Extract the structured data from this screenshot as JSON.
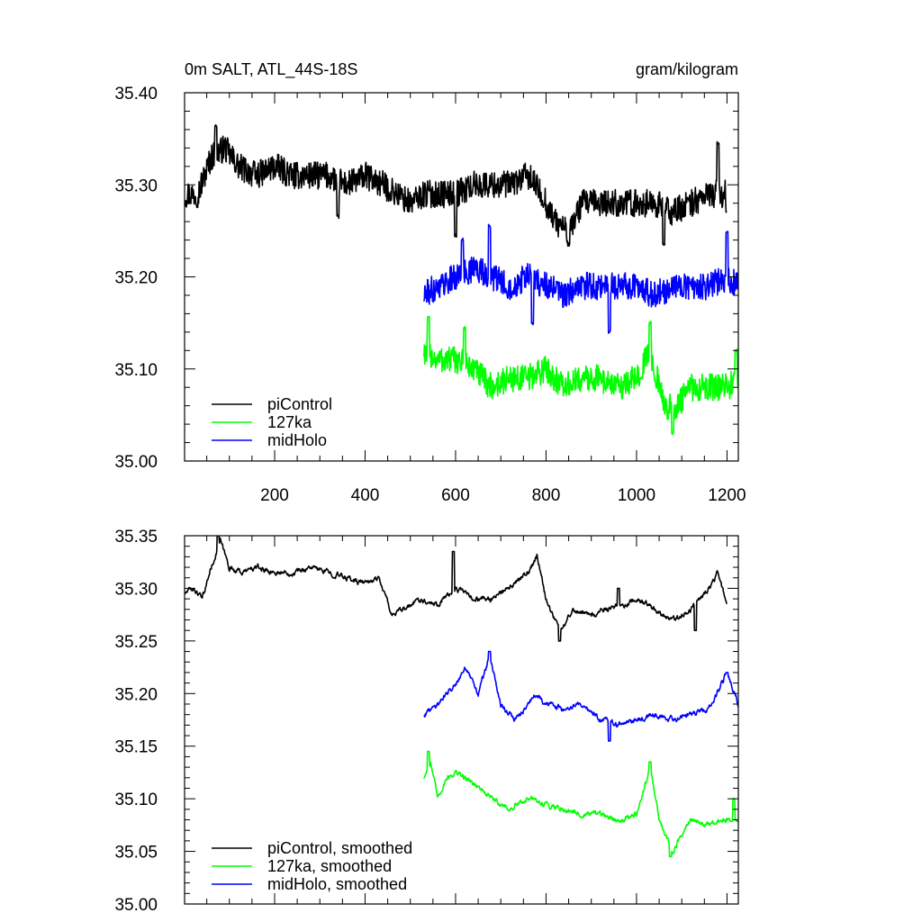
{
  "chart_data": [
    {
      "id": "raw",
      "type": "line",
      "title_left": "0m SALT, ATL_44S-18S",
      "title_right": "gram/kilogram",
      "xlim": [
        1,
        1225
      ],
      "ylim": [
        35.0,
        35.4
      ],
      "xticks": [
        200,
        400,
        600,
        800,
        1000,
        1200
      ],
      "xtick_labels": [
        "200",
        "400",
        "600",
        "800",
        "1000",
        "1200"
      ],
      "show_xtick_labels": true,
      "yticks": [
        35.0,
        35.1,
        35.2,
        35.3,
        35.4
      ],
      "ytick_labels": [
        "35.00",
        "35.10",
        "35.20",
        "35.30",
        "35.40"
      ],
      "legend_position": "bottom-left",
      "series": [
        {
          "name": "piControl",
          "color": "#000000",
          "x_range": [
            1,
            1200
          ],
          "anchors": [
            [
              1,
              35.29
            ],
            [
              30,
              35.29
            ],
            [
              60,
              35.33
            ],
            [
              90,
              35.34
            ],
            [
              120,
              35.32
            ],
            [
              160,
              35.31
            ],
            [
              200,
              35.32
            ],
            [
              240,
              35.31
            ],
            [
              280,
              35.31
            ],
            [
              320,
              35.31
            ],
            [
              360,
              35.3
            ],
            [
              400,
              35.31
            ],
            [
              440,
              35.3
            ],
            [
              470,
              35.29
            ],
            [
              500,
              35.28
            ],
            [
              530,
              35.29
            ],
            [
              560,
              35.29
            ],
            [
              600,
              35.29
            ],
            [
              640,
              35.3
            ],
            [
              680,
              35.3
            ],
            [
              720,
              35.3
            ],
            [
              760,
              35.31
            ],
            [
              790,
              35.29
            ],
            [
              820,
              35.26
            ],
            [
              850,
              35.25
            ],
            [
              880,
              35.28
            ],
            [
              920,
              35.28
            ],
            [
              960,
              35.28
            ],
            [
              1000,
              35.28
            ],
            [
              1040,
              35.28
            ],
            [
              1080,
              35.27
            ],
            [
              1120,
              35.28
            ],
            [
              1160,
              35.29
            ],
            [
              1200,
              35.29
            ]
          ],
          "noise": 0.015,
          "spikes": [
            [
              70,
              35.365
            ],
            [
              340,
              35.265
            ],
            [
              600,
              35.245
            ],
            [
              850,
              35.235
            ],
            [
              1060,
              35.235
            ],
            [
              1180,
              35.345
            ],
            [
              1200,
              35.27
            ]
          ]
        },
        {
          "name": "127ka",
          "color": "#00ff00",
          "x_range": [
            530,
            1225
          ],
          "anchors": [
            [
              530,
              35.12
            ],
            [
              560,
              35.11
            ],
            [
              600,
              35.11
            ],
            [
              640,
              35.1
            ],
            [
              680,
              35.08
            ],
            [
              720,
              35.09
            ],
            [
              760,
              35.09
            ],
            [
              800,
              35.1
            ],
            [
              840,
              35.08
            ],
            [
              880,
              35.09
            ],
            [
              920,
              35.09
            ],
            [
              960,
              35.08
            ],
            [
              1000,
              35.09
            ],
            [
              1030,
              35.12
            ],
            [
              1060,
              35.06
            ],
            [
              1090,
              35.06
            ],
            [
              1120,
              35.08
            ],
            [
              1160,
              35.08
            ],
            [
              1200,
              35.08
            ],
            [
              1225,
              35.09
            ]
          ],
          "noise": 0.015,
          "spikes": [
            [
              540,
              35.155
            ],
            [
              620,
              35.145
            ],
            [
              1030,
              35.15
            ],
            [
              1080,
              35.03
            ],
            [
              1220,
              35.12
            ]
          ]
        },
        {
          "name": "midHolo",
          "color": "#0000ff",
          "x_range": [
            530,
            1225
          ],
          "anchors": [
            [
              530,
              35.18
            ],
            [
              560,
              35.19
            ],
            [
              600,
              35.2
            ],
            [
              640,
              35.21
            ],
            [
              680,
              35.2
            ],
            [
              720,
              35.19
            ],
            [
              760,
              35.2
            ],
            [
              800,
              35.19
            ],
            [
              840,
              35.18
            ],
            [
              880,
              35.19
            ],
            [
              920,
              35.19
            ],
            [
              960,
              35.19
            ],
            [
              1000,
              35.19
            ],
            [
              1040,
              35.18
            ],
            [
              1080,
              35.19
            ],
            [
              1120,
              35.19
            ],
            [
              1160,
              35.19
            ],
            [
              1200,
              35.2
            ],
            [
              1225,
              35.19
            ]
          ],
          "noise": 0.015,
          "spikes": [
            [
              615,
              35.24
            ],
            [
              675,
              35.255
            ],
            [
              770,
              35.15
            ],
            [
              940,
              35.14
            ],
            [
              1200,
              35.25
            ]
          ]
        }
      ]
    },
    {
      "id": "smoothed",
      "type": "line",
      "xlim": [
        1,
        1225
      ],
      "ylim": [
        35.0,
        35.35
      ],
      "xticks": [
        200,
        400,
        600,
        800,
        1000,
        1200
      ],
      "xtick_labels": [],
      "show_xtick_labels": false,
      "yticks": [
        35.0,
        35.05,
        35.1,
        35.15,
        35.2,
        35.25,
        35.3,
        35.35
      ],
      "ytick_labels": [
        "35.00",
        "35.05",
        "35.10",
        "35.15",
        "35.20",
        "35.25",
        "35.30",
        "35.35"
      ],
      "legend_position": "bottom-left",
      "series": [
        {
          "name": "piControl, smoothed",
          "color": "#000000",
          "x_range": [
            1,
            1200
          ],
          "anchors": [
            [
              1,
              35.295
            ],
            [
              20,
              35.3
            ],
            [
              40,
              35.29
            ],
            [
              60,
              35.32
            ],
            [
              80,
              35.345
            ],
            [
              100,
              35.32
            ],
            [
              130,
              35.315
            ],
            [
              160,
              35.32
            ],
            [
              200,
              35.315
            ],
            [
              240,
              35.315
            ],
            [
              280,
              35.32
            ],
            [
              320,
              35.315
            ],
            [
              360,
              35.31
            ],
            [
              400,
              35.305
            ],
            [
              430,
              35.31
            ],
            [
              460,
              35.275
            ],
            [
              490,
              35.28
            ],
            [
              520,
              35.29
            ],
            [
              560,
              35.285
            ],
            [
              600,
              35.3
            ],
            [
              640,
              35.29
            ],
            [
              680,
              35.29
            ],
            [
              720,
              35.3
            ],
            [
              760,
              35.315
            ],
            [
              780,
              35.33
            ],
            [
              800,
              35.29
            ],
            [
              830,
              35.26
            ],
            [
              860,
              35.28
            ],
            [
              900,
              35.275
            ],
            [
              940,
              35.28
            ],
            [
              980,
              35.285
            ],
            [
              1000,
              35.29
            ],
            [
              1040,
              35.28
            ],
            [
              1080,
              35.27
            ],
            [
              1120,
              35.28
            ],
            [
              1160,
              35.3
            ],
            [
              1180,
              35.315
            ],
            [
              1200,
              35.285
            ]
          ],
          "noise": 0.006,
          "spikes": [
            [
              75,
              35.35
            ],
            [
              595,
              35.335
            ],
            [
              830,
              35.25
            ],
            [
              960,
              35.3
            ],
            [
              1130,
              35.26
            ]
          ]
        },
        {
          "name": "127ka, smoothed",
          "color": "#00ff00",
          "x_range": [
            530,
            1225
          ],
          "anchors": [
            [
              530,
              35.12
            ],
            [
              545,
              35.135
            ],
            [
              560,
              35.1
            ],
            [
              580,
              35.12
            ],
            [
              600,
              35.125
            ],
            [
              640,
              35.115
            ],
            [
              680,
              35.1
            ],
            [
              720,
              35.09
            ],
            [
              760,
              35.1
            ],
            [
              800,
              35.095
            ],
            [
              840,
              35.09
            ],
            [
              880,
              35.085
            ],
            [
              920,
              35.085
            ],
            [
              960,
              35.08
            ],
            [
              1000,
              35.085
            ],
            [
              1030,
              35.13
            ],
            [
              1050,
              35.08
            ],
            [
              1080,
              35.05
            ],
            [
              1100,
              35.065
            ],
            [
              1120,
              35.08
            ],
            [
              1160,
              35.075
            ],
            [
              1200,
              35.08
            ],
            [
              1225,
              35.08
            ]
          ],
          "noise": 0.006,
          "spikes": [
            [
              540,
              35.145
            ],
            [
              1030,
              35.135
            ],
            [
              1075,
              35.045
            ],
            [
              1215,
              35.1
            ]
          ]
        },
        {
          "name": "midHolo, smoothed",
          "color": "#0000ff",
          "x_range": [
            530,
            1225
          ],
          "anchors": [
            [
              530,
              35.18
            ],
            [
              560,
              35.19
            ],
            [
              600,
              35.21
            ],
            [
              620,
              35.225
            ],
            [
              650,
              35.2
            ],
            [
              675,
              35.235
            ],
            [
              700,
              35.19
            ],
            [
              730,
              35.175
            ],
            [
              760,
              35.19
            ],
            [
              780,
              35.2
            ],
            [
              800,
              35.19
            ],
            [
              840,
              35.185
            ],
            [
              880,
              35.19
            ],
            [
              920,
              35.175
            ],
            [
              960,
              35.17
            ],
            [
              1000,
              35.175
            ],
            [
              1040,
              35.18
            ],
            [
              1080,
              35.175
            ],
            [
              1120,
              35.18
            ],
            [
              1160,
              35.185
            ],
            [
              1200,
              35.22
            ],
            [
              1225,
              35.19
            ]
          ],
          "noise": 0.006,
          "spikes": [
            [
              675,
              35.24
            ],
            [
              940,
              35.155
            ],
            [
              1200,
              35.22
            ]
          ]
        }
      ]
    }
  ]
}
